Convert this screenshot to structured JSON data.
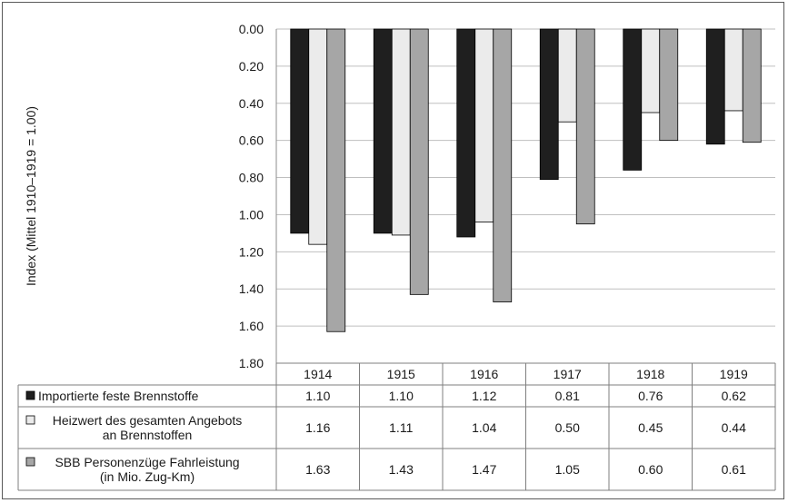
{
  "chart_data": {
    "type": "bar",
    "orientation": "vertical-inverted",
    "ylabel": "Index (Mittel 1910–1919 = 1.00)",
    "ylim": [
      0,
      1.8
    ],
    "y_ticks": [
      "0.00",
      "0.20",
      "0.40",
      "0.60",
      "0.80",
      "1.00",
      "1.20",
      "1.40",
      "1.60",
      "1.80"
    ],
    "y_axis_inverted": true,
    "grid": true,
    "categories": [
      "1914",
      "1915",
      "1916",
      "1917",
      "1918",
      "1919"
    ],
    "series": [
      {
        "name": "Importierte feste Brennstoffe",
        "color": "#1f1f1f",
        "values": [
          1.1,
          1.1,
          1.12,
          0.81,
          0.76,
          0.62
        ],
        "labels": [
          "1.10",
          "1.10",
          "1.12",
          "0.81",
          "0.76",
          "0.62"
        ]
      },
      {
        "name": "Heizwert des gesamten Angebots an Brennstoffen",
        "name_lines": [
          "Heizwert des gesamten Angebots",
          "an Brennstoffen"
        ],
        "color": "#ebebeb",
        "values": [
          1.16,
          1.11,
          1.04,
          0.5,
          0.45,
          0.44
        ],
        "labels": [
          "1.16",
          "1.11",
          "1.04",
          "0.50",
          "0.45",
          "0.44"
        ]
      },
      {
        "name": "SBB Personenzüge Fahrleistung (in Mio. Zug-Km)",
        "name_lines": [
          "SBB Personenzüge Fahrleistung",
          "(in Mio. Zug-Km)"
        ],
        "color": "#a6a6a6",
        "values": [
          1.63,
          1.43,
          1.47,
          1.05,
          0.6,
          0.61
        ],
        "labels": [
          "1.63",
          "1.43",
          "1.47",
          "1.05",
          "0.60",
          "0.61"
        ]
      }
    ],
    "legend": "data-table"
  }
}
